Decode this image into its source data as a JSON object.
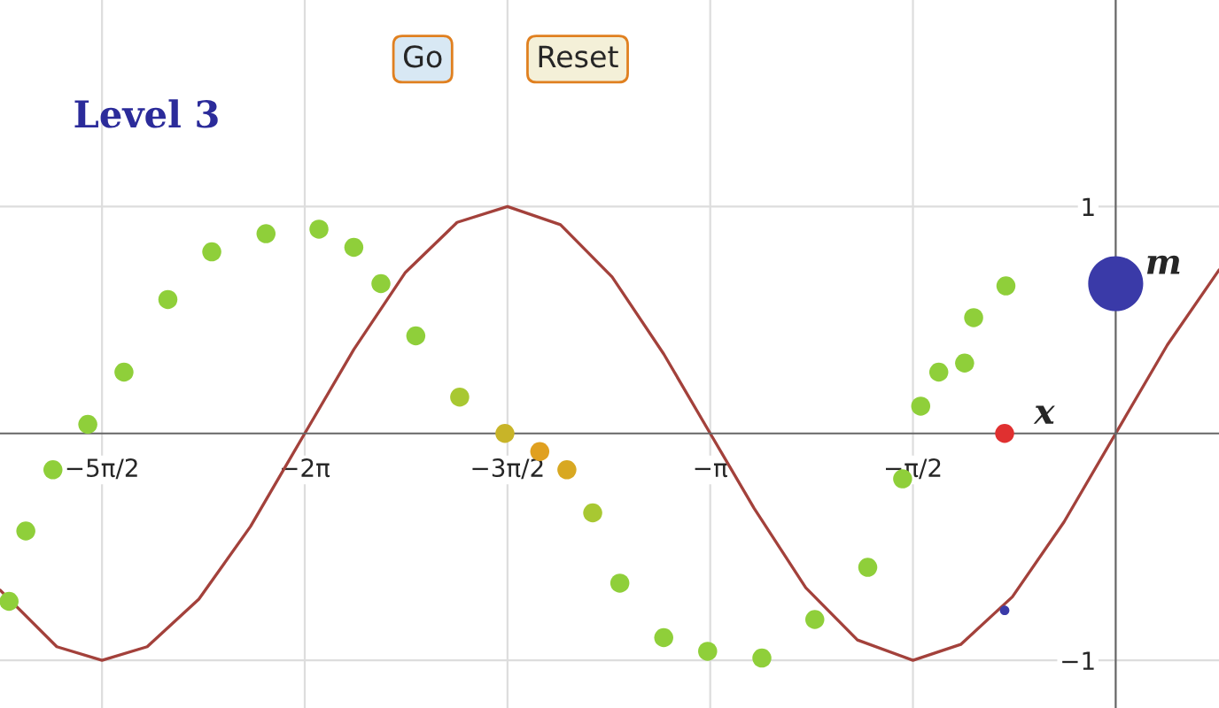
{
  "chart_data": {
    "type": "line",
    "xlim": [
      -8.64,
      0.8
    ],
    "ylim": [
      -1.21,
      1.91
    ],
    "xticks": [
      {
        "value": -7.85,
        "label": "−5π/2"
      },
      {
        "value": -6.28,
        "label": "−2π"
      },
      {
        "value": -4.71,
        "label": "−3π/2"
      },
      {
        "value": -3.14,
        "label": "−π"
      },
      {
        "value": -1.57,
        "label": "−π/2"
      }
    ],
    "yticks": [
      1,
      {
        "value": -1,
        "label": "−1"
      }
    ],
    "grid": true,
    "annotations": [
      "Level 3",
      "Go",
      "Reset",
      {
        "text": "x",
        "x": -0.86,
        "y": 0
      },
      {
        "text": "m",
        "x": 0,
        "y": 0.66
      }
    ],
    "series": [
      {
        "color": "#a3413b",
        "x": [
          -8.64,
          -8.2,
          -7.85,
          -7.5,
          -7.1,
          -6.7,
          -6.28,
          -5.9,
          -5.5,
          -5.1,
          -4.71,
          -4.3,
          -3.9,
          -3.5,
          -3.14,
          -2.8,
          -2.4,
          -2.0,
          -1.57,
          -1.2,
          -0.8,
          -0.4,
          0,
          0.4,
          0.8
        ],
        "values": [
          -0.69,
          -0.94,
          -1.0,
          -0.94,
          -0.73,
          -0.41,
          0,
          0.37,
          0.71,
          0.93,
          1.0,
          0.92,
          0.69,
          0.35,
          0,
          -0.33,
          -0.68,
          -0.91,
          -1.0,
          -0.93,
          -0.72,
          -0.39,
          0,
          0.39,
          0.72
        ]
      },
      {
        "type": "scatter",
        "x": [
          -8.57,
          -8.44,
          -8.23,
          -7.96,
          -7.68,
          -7.34,
          -7.0,
          -6.58,
          -6.17,
          -5.9,
          -5.69,
          -5.42,
          -5.08,
          -4.73,
          -4.46,
          -4.25,
          -4.05,
          -3.84,
          -3.5,
          -3.16,
          -2.74,
          -2.33,
          -1.92,
          -1.65,
          -1.51,
          -1.37,
          -1.17,
          -1.1,
          -0.85
        ],
        "values": [
          -0.74,
          -0.43,
          -0.16,
          0.04,
          0.27,
          0.59,
          0.8,
          0.88,
          0.9,
          0.82,
          0.66,
          0.43,
          0.16,
          0.0,
          -0.08,
          -0.16,
          -0.35,
          -0.66,
          -0.9,
          -0.96,
          -0.99,
          -0.82,
          -0.59,
          -0.2,
          0.12,
          0.27,
          0.31,
          0.51,
          0.65
        ],
        "colors": [
          "#8fcf3a",
          "#8fcf3a",
          "#8fcf3a",
          "#8fcf3a",
          "#8fcf3a",
          "#8fcf3a",
          "#8fcf3a",
          "#8fcf3a",
          "#8fcf3a",
          "#8fcf3a",
          "#8fcf3a",
          "#8fcf3a",
          "#a8c832",
          "#c8b428",
          "#e0a020",
          "#d8a822",
          "#a8c832",
          "#8fcf3a",
          "#8fcf3a",
          "#8fcf3a",
          "#8fcf3a",
          "#8fcf3a",
          "#8fcf3a",
          "#8fcf3a",
          "#8fcf3a",
          "#8fcf3a",
          "#8fcf3a",
          "#8fcf3a",
          "#8fcf3a"
        ]
      },
      {
        "type": "scatter",
        "x": [
          -0.86
        ],
        "values": [
          0
        ],
        "color": "#e03030"
      },
      {
        "type": "scatter",
        "x": [
          0
        ],
        "values": [
          0.66
        ],
        "color": "#3a3aa8"
      },
      {
        "type": "scatter",
        "x": [
          -0.86
        ],
        "values": [
          -0.78
        ],
        "color": "#3a3aa8"
      }
    ]
  }
}
